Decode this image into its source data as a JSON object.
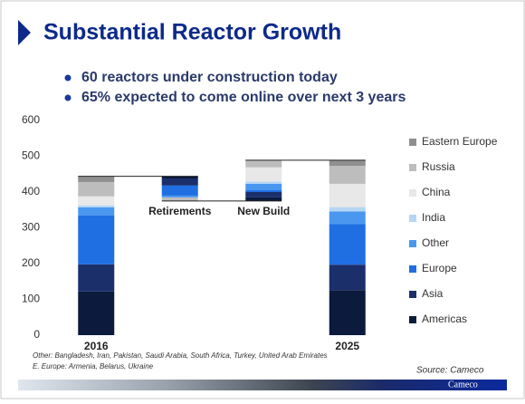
{
  "chart_data": {
    "type": "waterfall",
    "title": "Substantial Reactor Growth",
    "bullets": [
      "60 reactors under construction today",
      "65% expected to come online over next 3 years"
    ],
    "categories": [
      "2016",
      "Retirements",
      "New Build",
      "2025"
    ],
    "series": [
      {
        "name": "Americas",
        "color": "#0b1a3d",
        "values": [
          122,
          -6,
          10,
          126
        ]
      },
      {
        "name": "Asia",
        "color": "#1b2f6b",
        "values": [
          76,
          -20,
          15,
          71
        ]
      },
      {
        "name": "Europe",
        "color": "#1f6fe3",
        "values": [
          137,
          -28,
          5,
          114
        ]
      },
      {
        "name": "Other",
        "color": "#4a97f0",
        "values": [
          22,
          -5,
          18,
          35
        ]
      },
      {
        "name": "India",
        "color": "#b5d6f5",
        "values": [
          6,
          0,
          6,
          12
        ]
      },
      {
        "name": "China",
        "color": "#e8e8e8",
        "values": [
          25,
          0,
          40,
          65
        ]
      },
      {
        "name": "Russia",
        "color": "#bdbdbd",
        "values": [
          40,
          -10,
          20,
          50
        ]
      },
      {
        "name": "Eastern Europe",
        "color": "#8f8f8f",
        "values": [
          16,
          0,
          0,
          16
        ]
      }
    ],
    "ylim": [
      0,
      600
    ],
    "yticks": [
      0,
      100,
      200,
      300,
      400,
      500,
      600
    ],
    "notes": [
      "Other: Bangladesh, Iran, Pakistan, Saudi Arabia, South Africa, Turkey, United Arab Emirates",
      "E. Europe: Armenia, Belarus, Ukraine"
    ],
    "source": "Source: Cameco"
  },
  "footer": {
    "brand": "Cameco"
  }
}
